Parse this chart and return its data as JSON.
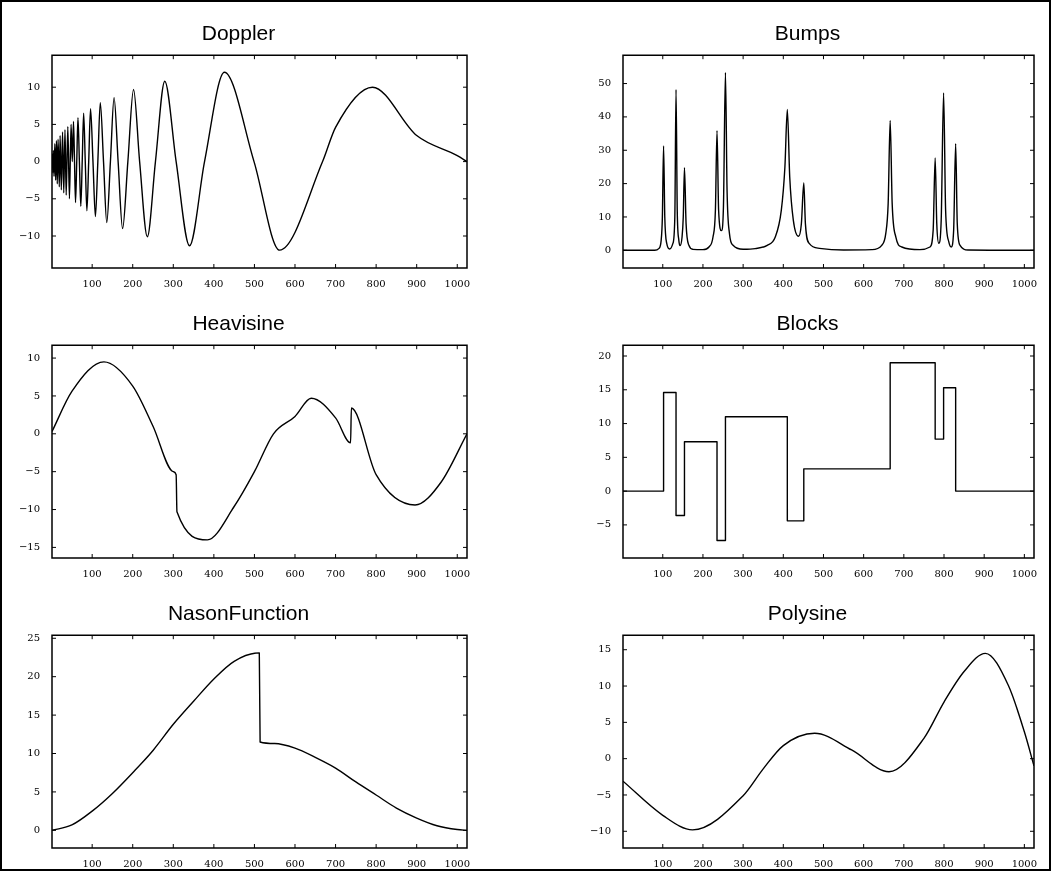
{
  "chart_data": [
    {
      "type": "line",
      "title": "Doppler",
      "color": "#000000",
      "xlim": [
        1,
        1024
      ],
      "xticks": [
        100,
        200,
        300,
        400,
        500,
        600,
        700,
        800,
        900,
        1000
      ],
      "ylim": [
        -14.3,
        14.3
      ],
      "yticks": [
        -10,
        -5,
        0,
        5,
        10
      ],
      "x": [
        1,
        2,
        3,
        4,
        6,
        8,
        10,
        12,
        14,
        16,
        19,
        21,
        24,
        27,
        30,
        33,
        36,
        40,
        44,
        48,
        51,
        54,
        56.5,
        59,
        62,
        65,
        68.5,
        72,
        75.5,
        79,
        83,
        87,
        91.5,
        96,
        102,
        108,
        114,
        120,
        128,
        136,
        145,
        154,
        164,
        175,
        188,
        202,
        217,
        236,
        256,
        279,
        307,
        340,
        377,
        426,
        499,
        562,
        668,
        700,
        791,
        900,
        1000,
        1024
      ],
      "values": [
        0,
        1,
        -1.5,
        1.5,
        -2,
        2.4,
        -2.5,
        2.8,
        -3,
        3,
        -3.4,
        3.5,
        -3.8,
        4,
        -4.2,
        4.3,
        -4.5,
        4.7,
        -5,
        5,
        0,
        5.4,
        0,
        -5.5,
        0,
        5.9,
        0,
        -6,
        0,
        6.5,
        0,
        -6.6,
        0,
        7.1,
        0,
        -7.4,
        0,
        7.9,
        0,
        -8.2,
        0,
        8.6,
        0,
        -9,
        0,
        9.7,
        0,
        -10.1,
        0,
        10.8,
        0,
        -11.3,
        0,
        12,
        0,
        -11.9,
        0,
        4.6,
        10,
        3.5,
        0.8,
        0
      ]
    },
    {
      "type": "line",
      "title": "Bumps",
      "color": "#000000",
      "xlim": [
        1,
        1024
      ],
      "xticks": [
        100,
        200,
        300,
        400,
        500,
        600,
        700,
        800,
        900,
        1000
      ],
      "ylim": [
        -5.3,
        58.5
      ],
      "yticks": [
        0,
        10,
        20,
        30,
        40,
        50
      ],
      "x": [
        1,
        80,
        90,
        96,
        99,
        102,
        105,
        110,
        117,
        125,
        130,
        133,
        136,
        140,
        143,
        148,
        151,
        154,
        158,
        165,
        175,
        200,
        215,
        225,
        231,
        235,
        239,
        246,
        251,
        256,
        260,
        266,
        275,
        300,
        330,
        360,
        380,
        395,
        404,
        410,
        416,
        425,
        438,
        445,
        451,
        455,
        465,
        490,
        550,
        620,
        645,
        655,
        661,
        666,
        671,
        680,
        695,
        740,
        765,
        773,
        778,
        782,
        787,
        793,
        799,
        804,
        812,
        818,
        824,
        829,
        833,
        840,
        860,
        1024
      ],
      "values": [
        0,
        0,
        0.5,
        3,
        10,
        31.3,
        10,
        2,
        0.4,
        2,
        10,
        48.2,
        12,
        3,
        1.4,
        4,
        10,
        24.8,
        8,
        1.5,
        0.3,
        0.2,
        1,
        4,
        12,
        35.9,
        12,
        5.9,
        13,
        53.3,
        18,
        5,
        1.5,
        0.3,
        0.5,
        1.5,
        4,
        12,
        25,
        42.2,
        22,
        9,
        4.2,
        8,
        20.2,
        8,
        2,
        0.6,
        0.1,
        0.2,
        1.5,
        5,
        14,
        38.9,
        14,
        4,
        1,
        0.2,
        1,
        6,
        27.7,
        8,
        2.1,
        9,
        47.2,
        12,
        2.5,
        1,
        6,
        32,
        8,
        1.5,
        0.1,
        0
      ]
    },
    {
      "type": "line",
      "title": "Heavisine",
      "color": "#000000",
      "xlim": [
        1,
        1024
      ],
      "xticks": [
        100,
        200,
        300,
        400,
        500,
        600,
        700,
        800,
        900,
        1000
      ],
      "ylim": [
        -16.4,
        11.7
      ],
      "yticks": [
        -15,
        -10,
        -5,
        0,
        5,
        10
      ],
      "x": [
        1,
        50,
        129,
        200,
        250,
        300,
        307,
        309,
        384,
        450,
        500,
        547,
        600,
        640,
        700,
        737,
        739,
        800,
        896,
        960,
        1024
      ],
      "values": [
        0.3,
        5.6,
        9.5,
        6.3,
        1,
        -5,
        -5.4,
        -10.3,
        -14,
        -9.6,
        -5,
        0,
        2.3,
        4.7,
        2.1,
        -1.2,
        3.4,
        -5.4,
        -9.4,
        -6.4,
        0
      ]
    },
    {
      "type": "step",
      "title": "Blocks",
      "color": "#000000",
      "xlim": [
        1,
        1024
      ],
      "xticks": [
        100,
        200,
        300,
        400,
        500,
        600,
        700,
        800,
        900,
        1000
      ],
      "ylim": [
        -9.9,
        21.6
      ],
      "yticks": [
        -5,
        0,
        5,
        10,
        15,
        20
      ],
      "x": [
        1,
        102,
        133,
        154,
        235,
        256,
        410,
        451,
        666,
        778,
        799,
        829,
        1024
      ],
      "values": [
        0,
        14.6,
        -3.6,
        7.3,
        -7.3,
        11,
        -4.4,
        3.3,
        19,
        7.7,
        15.3,
        0,
        0
      ]
    },
    {
      "type": "line",
      "title": "NasonFunction",
      "color": "#000000",
      "xlim": [
        1,
        1024
      ],
      "xticks": [
        100,
        200,
        300,
        400,
        500,
        600,
        700,
        800,
        900,
        1000
      ],
      "ylim": [
        -2.3,
        25.4
      ],
      "yticks": [
        0,
        5,
        10,
        15,
        20,
        25
      ],
      "x": [
        1,
        50,
        100,
        150,
        200,
        250,
        300,
        350,
        400,
        450,
        512,
        514,
        550,
        600,
        650,
        700,
        750,
        800,
        850,
        900,
        950,
        1000,
        1024
      ],
      "values": [
        0,
        0.7,
        2.5,
        4.8,
        7.5,
        10.4,
        13.8,
        16.8,
        19.7,
        22,
        23.1,
        11.5,
        11.3,
        10.7,
        9.5,
        8.1,
        6.3,
        4.6,
        2.9,
        1.6,
        0.6,
        0.1,
        0
      ]
    },
    {
      "type": "line",
      "title": "Polysine",
      "color": "#000000",
      "xlim": [
        1,
        1024
      ],
      "xticks": [
        100,
        200,
        300,
        400,
        500,
        600,
        700,
        800,
        900,
        1000
      ],
      "ylim": [
        -12.3,
        17
      ],
      "yticks": [
        -10,
        -5,
        0,
        5,
        10,
        15
      ],
      "x": [
        1,
        100,
        174,
        300,
        350,
        400,
        478,
        570,
        663,
        750,
        800,
        850,
        903,
        960,
        1000,
        1024
      ],
      "values": [
        -3.1,
        -7.8,
        -9.8,
        -5.1,
        -1.4,
        1.8,
        3.5,
        1.2,
        -1.8,
        2.8,
        7.8,
        12,
        14.5,
        10.1,
        3.7,
        -1
      ]
    }
  ]
}
